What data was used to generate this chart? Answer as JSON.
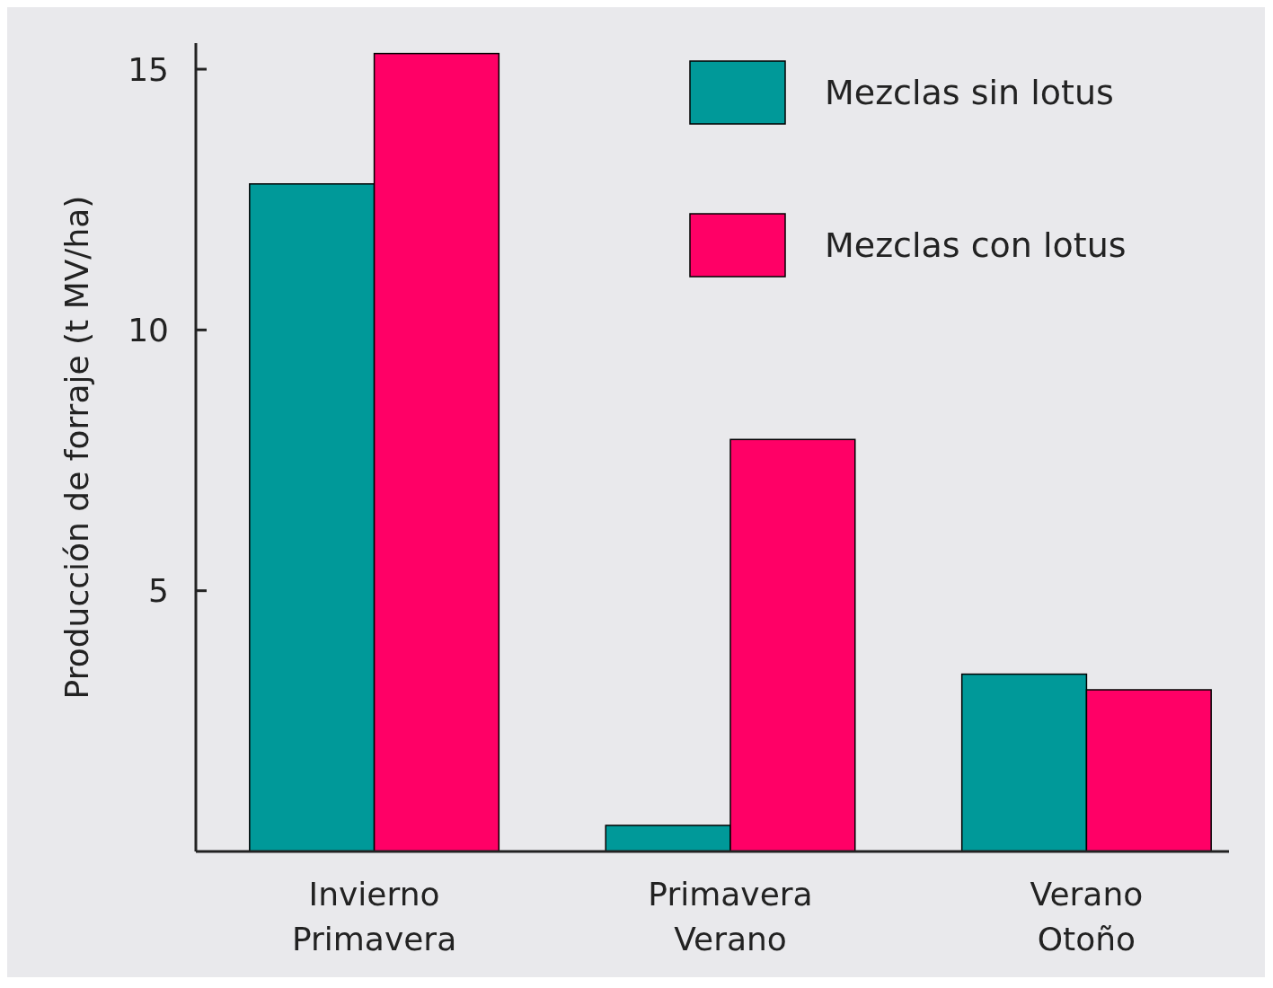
{
  "chart_data": {
    "type": "bar",
    "ylabel": "Producción de forraje (t MV/ha)",
    "categories": [
      "Invierno\nPrimavera",
      "Primavera\nVerano",
      "Verano\nOtoño"
    ],
    "series": [
      {
        "name": "Mezclas sin lotus",
        "color": "#009999",
        "values": [
          12.8,
          0.5,
          3.4
        ]
      },
      {
        "name": "Mezclas con lotus",
        "color": "#ff0066",
        "values": [
          15.3,
          7.9,
          3.1
        ]
      }
    ],
    "ylim": [
      0,
      15.5
    ],
    "yticks": [
      5,
      10,
      15
    ],
    "grid": false,
    "legend": "top right"
  }
}
